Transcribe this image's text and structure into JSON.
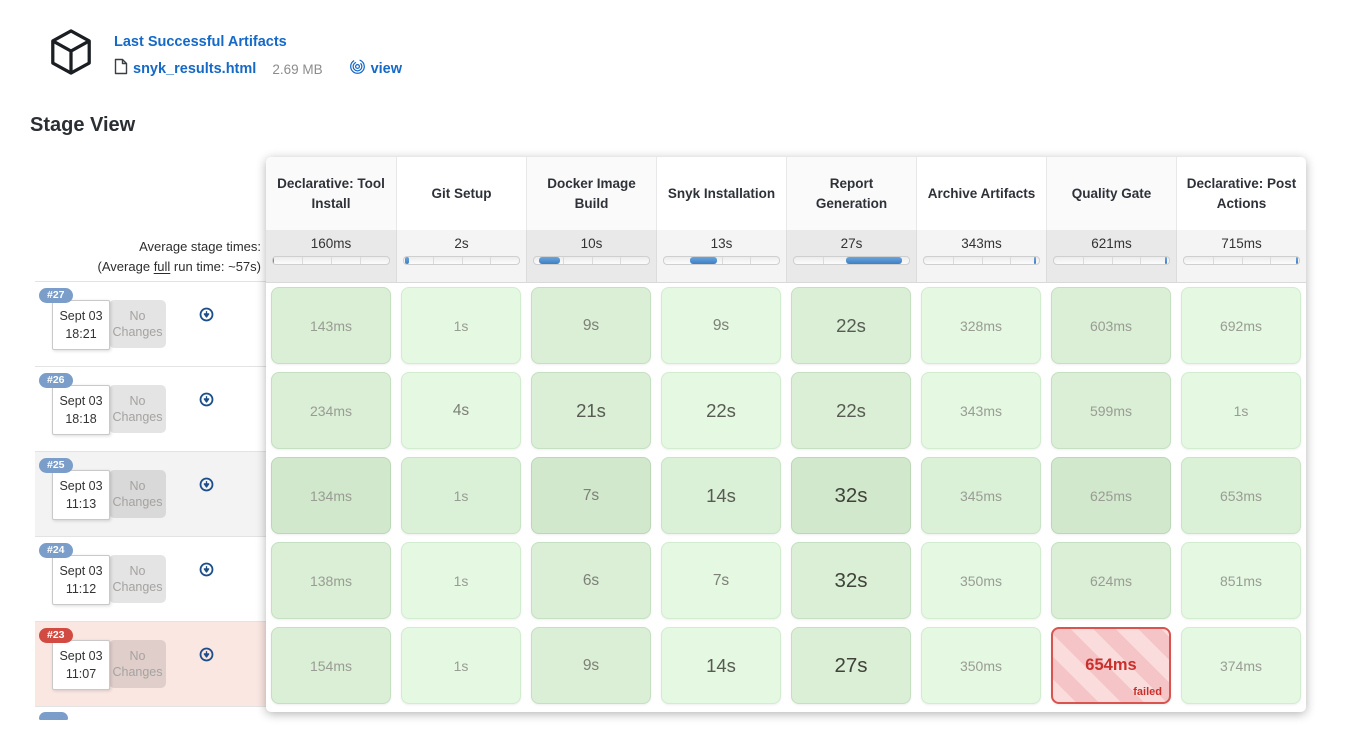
{
  "artifacts": {
    "title": "Last Successful Artifacts",
    "file_name": "snyk_results.html",
    "file_size": "2.69 MB",
    "view_label": "view"
  },
  "page_title": "Stage View",
  "stage_view": {
    "average_caption": "Average stage times:",
    "average_note_prefix": "(Average ",
    "average_note_underlined": "full",
    "average_note_suffix": " run time: ~57s)",
    "average_full_run_time": "~57s",
    "stages": [
      {
        "name": "Declarative: Tool Install",
        "avg": "160ms",
        "bar_start_pct": 0,
        "bar_width_pct": 0.6
      },
      {
        "name": "Git Setup",
        "avg": "2s",
        "bar_start_pct": 0.5,
        "bar_width_pct": 4
      },
      {
        "name": "Docker Image Build",
        "avg": "10s",
        "bar_start_pct": 4,
        "bar_width_pct": 19
      },
      {
        "name": "Snyk Installation",
        "avg": "13s",
        "bar_start_pct": 23,
        "bar_width_pct": 23
      },
      {
        "name": "Report Generation",
        "avg": "27s",
        "bar_start_pct": 45,
        "bar_width_pct": 49
      },
      {
        "name": "Archive Artifacts",
        "avg": "343ms",
        "bar_start_pct": 96,
        "bar_width_pct": 1.2
      },
      {
        "name": "Quality Gate",
        "avg": "621ms",
        "bar_start_pct": 96.5,
        "bar_width_pct": 1.4
      },
      {
        "name": "Declarative: Post Actions",
        "avg": "715ms",
        "bar_start_pct": 97.5,
        "bar_width_pct": 1.6
      }
    ],
    "builds": [
      {
        "id": "#27",
        "date": "Sept 03",
        "time": "18:21",
        "changes": "No Changes",
        "status": "success",
        "highlighted": false,
        "cells": [
          {
            "value": "143ms"
          },
          {
            "value": "1s"
          },
          {
            "value": "9s"
          },
          {
            "value": "9s"
          },
          {
            "value": "22s"
          },
          {
            "value": "328ms"
          },
          {
            "value": "603ms"
          },
          {
            "value": "692ms"
          }
        ]
      },
      {
        "id": "#26",
        "date": "Sept 03",
        "time": "18:18",
        "changes": "No Changes",
        "status": "success",
        "highlighted": false,
        "cells": [
          {
            "value": "234ms"
          },
          {
            "value": "4s"
          },
          {
            "value": "21s"
          },
          {
            "value": "22s"
          },
          {
            "value": "22s"
          },
          {
            "value": "343ms"
          },
          {
            "value": "599ms"
          },
          {
            "value": "1s"
          }
        ]
      },
      {
        "id": "#25",
        "date": "Sept 03",
        "time": "11:13",
        "changes": "No Changes",
        "status": "success",
        "highlighted": true,
        "cells": [
          {
            "value": "134ms"
          },
          {
            "value": "1s"
          },
          {
            "value": "7s"
          },
          {
            "value": "14s"
          },
          {
            "value": "32s"
          },
          {
            "value": "345ms"
          },
          {
            "value": "625ms"
          },
          {
            "value": "653ms"
          }
        ]
      },
      {
        "id": "#24",
        "date": "Sept 03",
        "time": "11:12",
        "changes": "No Changes",
        "status": "success",
        "highlighted": false,
        "cells": [
          {
            "value": "138ms"
          },
          {
            "value": "1s"
          },
          {
            "value": "6s"
          },
          {
            "value": "7s"
          },
          {
            "value": "32s"
          },
          {
            "value": "350ms"
          },
          {
            "value": "624ms"
          },
          {
            "value": "851ms"
          }
        ]
      },
      {
        "id": "#23",
        "date": "Sept 03",
        "time": "11:07",
        "changes": "No Changes",
        "status": "failed",
        "highlighted": false,
        "cells": [
          {
            "value": "154ms"
          },
          {
            "value": "1s"
          },
          {
            "value": "9s"
          },
          {
            "value": "14s"
          },
          {
            "value": "27s"
          },
          {
            "value": "350ms"
          },
          {
            "value": "654ms",
            "failed": true,
            "status_label": "failed"
          },
          {
            "value": "374ms"
          }
        ]
      }
    ]
  },
  "icons": {
    "artifact": "package-icon",
    "file": "document-icon",
    "view": "fingerprint-icon",
    "build_action": "circle-arrow-down-icon"
  },
  "colors": {
    "link_blue": "#1569c7",
    "badge_blue": "#7a9ec9",
    "badge_red": "#d24b42",
    "success_green": "#daefd5",
    "failed_red": "#d9534f",
    "bar_blue": "#4a8ccc"
  }
}
